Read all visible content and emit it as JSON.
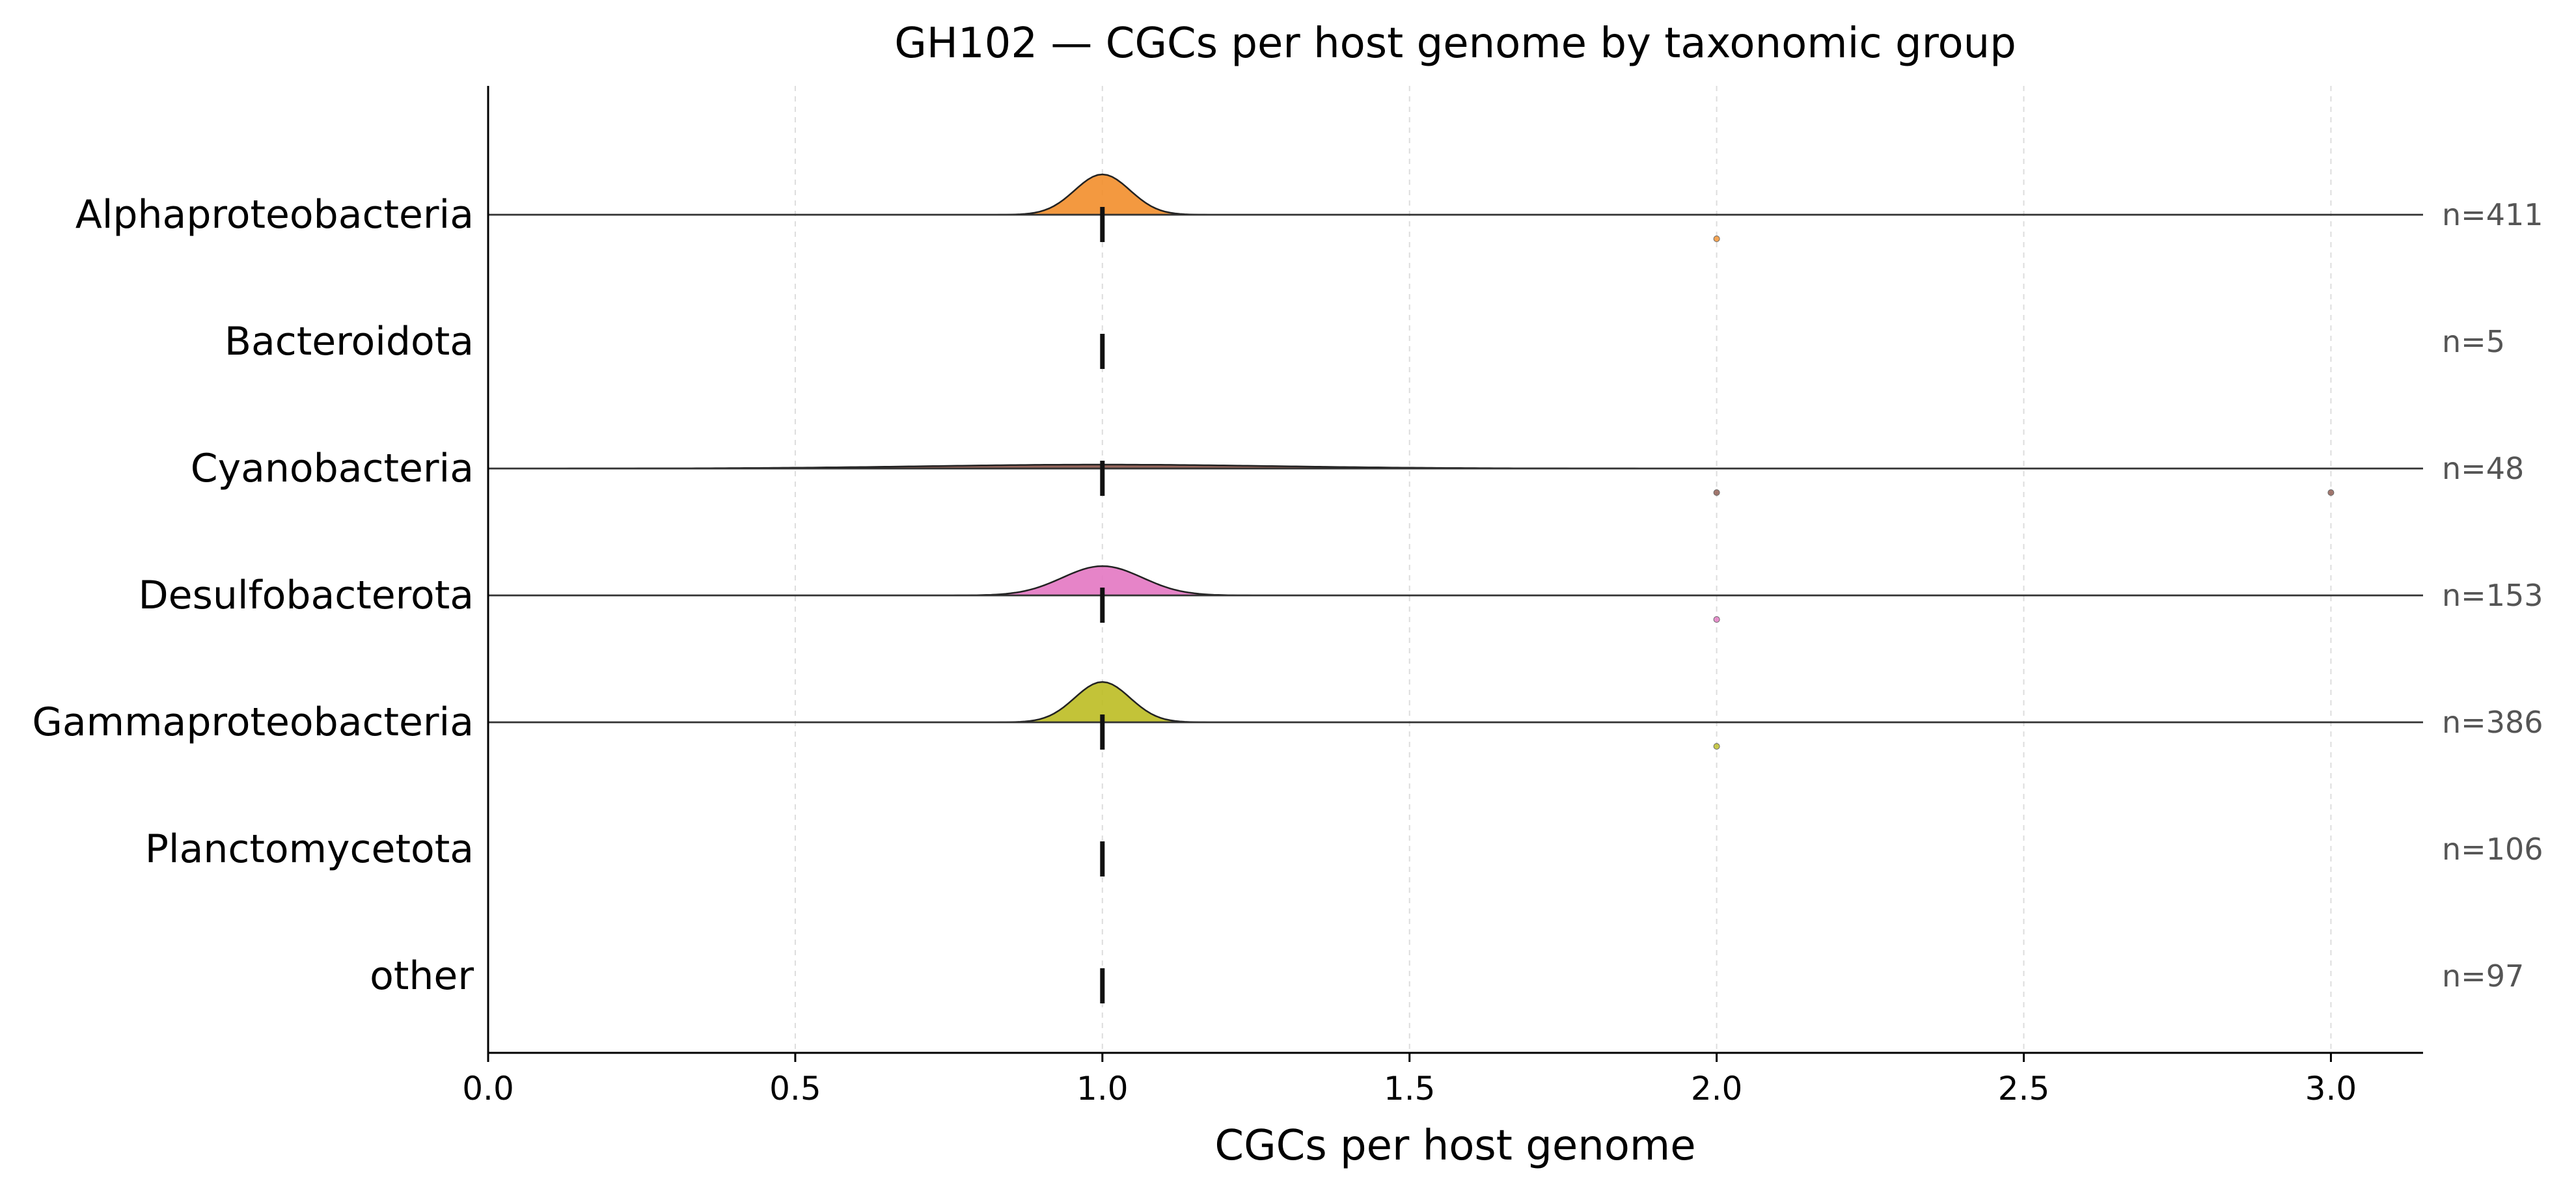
{
  "chart_data": {
    "type": "ridgeline",
    "title": "GH102 — CGCs per host genome by taxonomic group",
    "xlabel": "CGCs per host genome",
    "ylabel": "",
    "xlim": [
      0.0,
      3.15
    ],
    "x_ticks": [
      "0.0",
      "0.5",
      "1.0",
      "1.5",
      "2.0",
      "2.5",
      "3.0"
    ],
    "x_tick_values": [
      0.0,
      0.5,
      1.0,
      1.5,
      2.0,
      2.5,
      3.0
    ],
    "grid": "vertical-dashed",
    "groups": [
      {
        "name": "Alphaproteobacteria",
        "n_label": "n=411",
        "median": 1.0,
        "color": "#f28e2b",
        "density": "narrow",
        "outliers": [
          2.0
        ]
      },
      {
        "name": "Bacteroidota",
        "n_label": "n=5",
        "median": 1.0,
        "color": "#8c564b",
        "density": "none",
        "outliers": []
      },
      {
        "name": "Cyanobacteria",
        "n_label": "n=48",
        "median": 1.0,
        "color": "#8c564b",
        "density": "wide",
        "outliers": [
          2.0,
          3.0
        ]
      },
      {
        "name": "Desulfobacterota",
        "n_label": "n=153",
        "median": 1.0,
        "color": "#e377c2",
        "density": "medium",
        "outliers": [
          2.0
        ]
      },
      {
        "name": "Gammaproteobacteria",
        "n_label": "n=386",
        "median": 1.0,
        "color": "#bcbd22",
        "density": "narrow",
        "outliers": [
          2.0
        ]
      },
      {
        "name": "Planctomycetota",
        "n_label": "n=106",
        "median": 1.0,
        "color": "#7f7f7f",
        "density": "none",
        "outliers": []
      },
      {
        "name": "other",
        "n_label": "n=97",
        "median": 1.0,
        "color": "#17becf",
        "density": "none",
        "outliers": []
      }
    ]
  }
}
